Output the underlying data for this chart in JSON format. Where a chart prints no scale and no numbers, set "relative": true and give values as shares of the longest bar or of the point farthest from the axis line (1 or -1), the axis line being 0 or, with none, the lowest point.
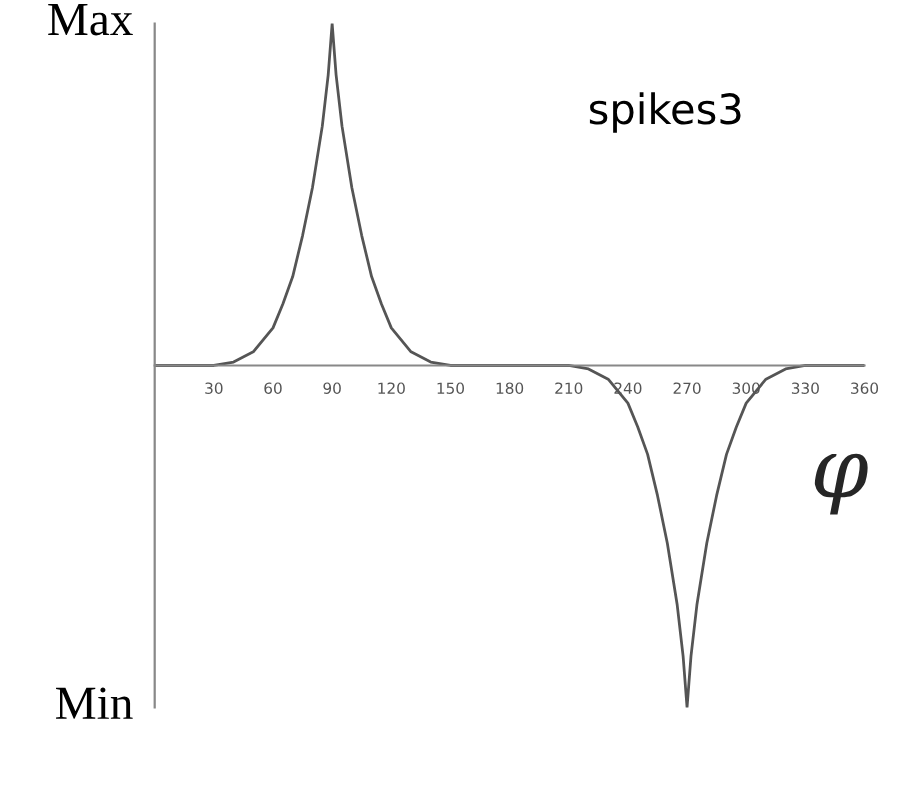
{
  "chart_data": {
    "type": "line",
    "x": [
      0,
      30,
      40,
      50,
      60,
      65,
      70,
      75,
      80,
      85,
      88,
      90,
      92,
      95,
      100,
      105,
      110,
      115,
      120,
      130,
      140,
      150,
      180,
      210,
      220,
      230,
      240,
      245,
      250,
      255,
      260,
      265,
      268,
      270,
      272,
      275,
      280,
      285,
      290,
      295,
      300,
      310,
      320,
      330,
      360
    ],
    "series": [
      {
        "color": "#555555",
        "values": [
          0,
          0,
          0.01,
          0.04,
          0.11,
          0.18,
          0.26,
          0.38,
          0.52,
          0.7,
          0.85,
          1,
          0.85,
          0.7,
          0.52,
          0.38,
          0.26,
          0.18,
          0.11,
          0.04,
          0.01,
          0,
          0,
          0,
          -0.01,
          -0.04,
          -0.11,
          -0.18,
          -0.26,
          -0.38,
          -0.52,
          -0.7,
          -0.85,
          -1,
          -0.85,
          -0.7,
          -0.52,
          -0.38,
          -0.26,
          -0.18,
          -0.11,
          -0.04,
          -0.01,
          0,
          0
        ]
      }
    ],
    "xlabel": "φ",
    "annotations": [
      "spikes3",
      "Max",
      "Min"
    ],
    "relative": true,
    "xlim": [
      0,
      360
    ],
    "xticks": [
      30,
      60,
      90,
      120,
      150,
      180,
      210,
      240,
      270,
      300,
      330,
      360
    ],
    "grid": false,
    "legend": false,
    "marker": "none",
    "line_style": "solid"
  }
}
